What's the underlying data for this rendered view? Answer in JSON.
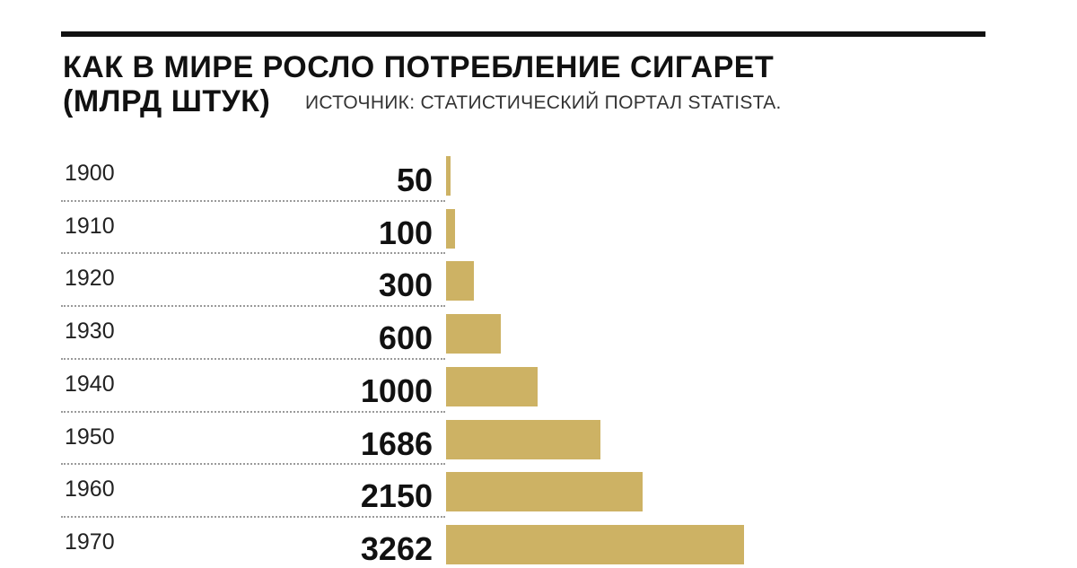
{
  "header": {
    "title_line1": "КАК В МИРЕ РОСЛО ПОТРЕБЛЕНИЕ СИГАРЕТ",
    "title_line2": "(МЛРД ШТУК)",
    "source": "ИСТОЧНИК: СТАТИСТИЧЕСКИЙ ПОРТАЛ STATISTA."
  },
  "chart_data": {
    "type": "bar",
    "orientation": "horizontal",
    "title": "КАК В МИРЕ РОСЛО ПОТРЕБЛЕНИЕ СИГАРЕТ (МЛРД ШТУК)",
    "categories": [
      "1900",
      "1910",
      "1920",
      "1930",
      "1940",
      "1950",
      "1960",
      "1970"
    ],
    "values": [
      50,
      100,
      300,
      600,
      1000,
      1686,
      2150,
      3262
    ],
    "value_labels": [
      "50",
      "100",
      "300",
      "600",
      "1000",
      "1686",
      "2150",
      "3262"
    ],
    "bar_color": "#cdb264",
    "grid": false,
    "legend": "none"
  }
}
